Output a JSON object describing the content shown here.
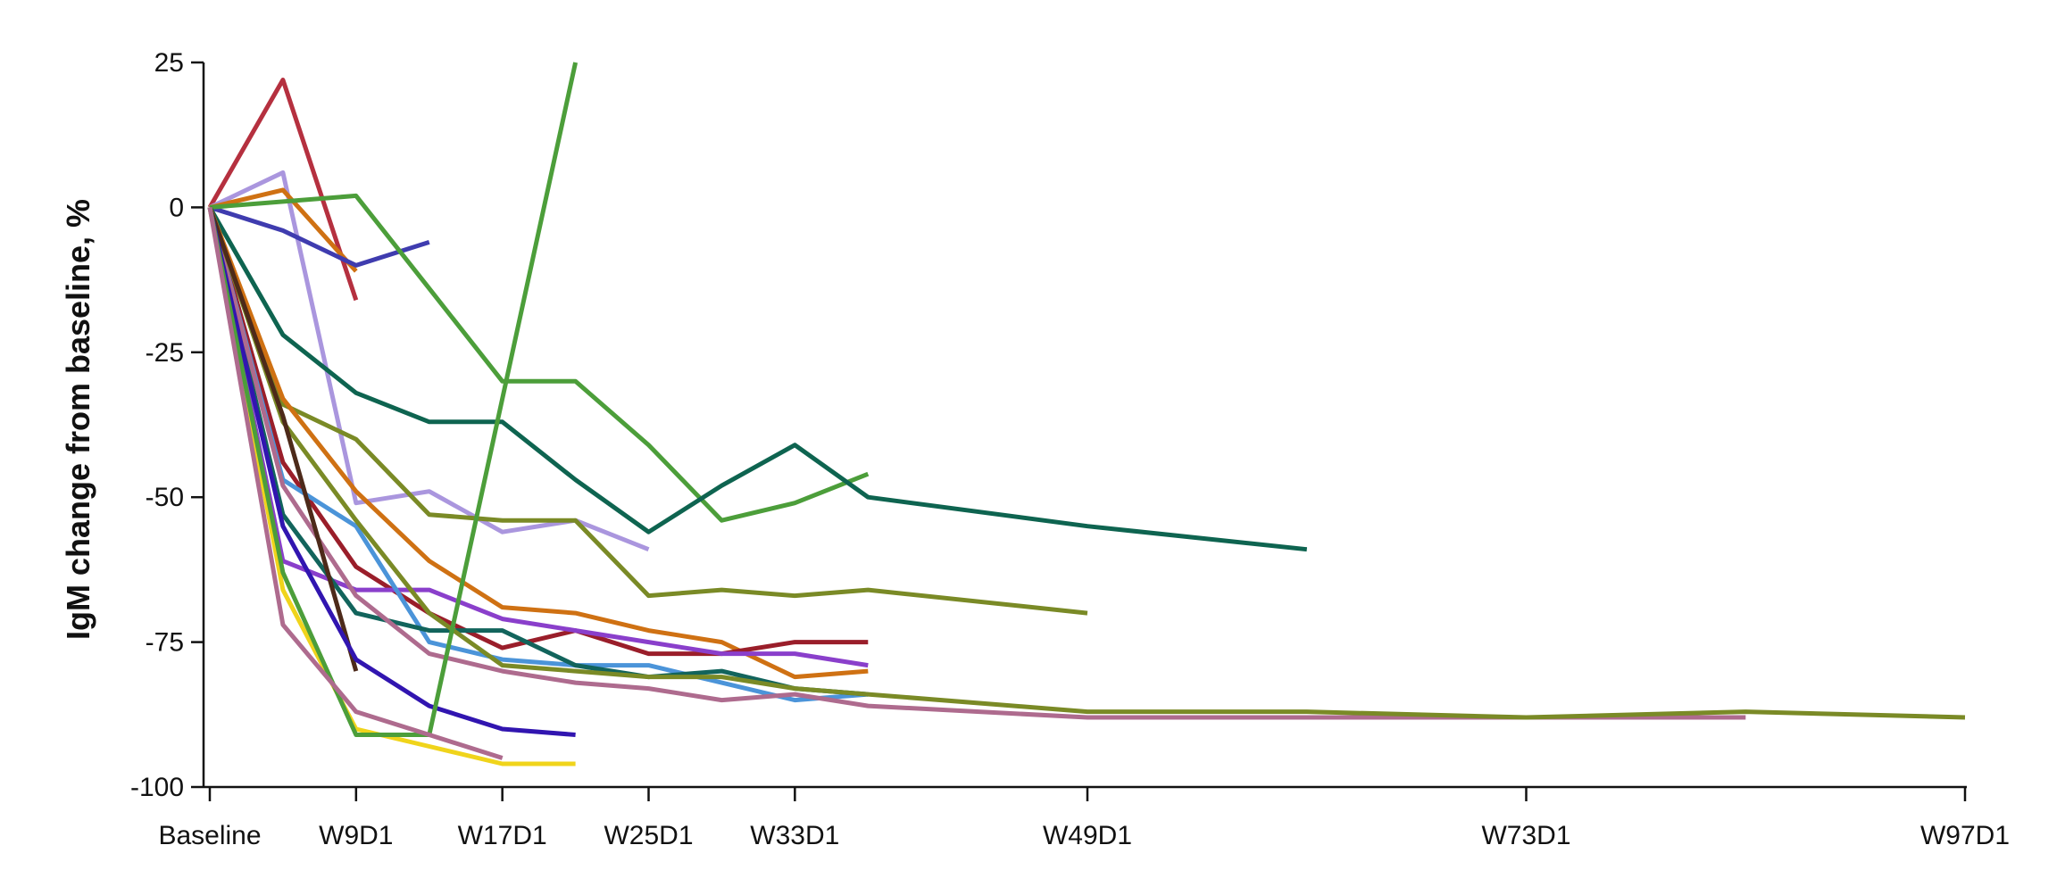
{
  "chart_data": {
    "type": "line",
    "title": "",
    "xlabel": "",
    "ylabel": "IgM change from baseline, %",
    "ylim": [
      -100,
      25
    ],
    "y_ticks": [
      25,
      0,
      -25,
      -50,
      -75,
      -100
    ],
    "x_ticks": [
      {
        "label": "Baseline",
        "week": 1
      },
      {
        "label": "W9D1",
        "week": 9
      },
      {
        "label": "W17D1",
        "week": 17
      },
      {
        "label": "W25D1",
        "week": 25
      },
      {
        "label": "W33D1",
        "week": 33
      },
      {
        "label": "W49D1",
        "week": 49
      },
      {
        "label": "W73D1",
        "week": 73
      },
      {
        "label": "W97D1",
        "week": 97
      }
    ],
    "x_unit": "week",
    "grid": false,
    "legend": "none",
    "series": [
      {
        "color": "#b5303f",
        "points": [
          [
            1,
            0
          ],
          [
            5,
            22
          ],
          [
            9,
            -16
          ]
        ]
      },
      {
        "color": "#aa96de",
        "points": [
          [
            1,
            0
          ],
          [
            5,
            6
          ],
          [
            9,
            -51
          ],
          [
            13,
            -49
          ],
          [
            17,
            -56
          ],
          [
            21,
            -54
          ],
          [
            25,
            -59
          ]
        ]
      },
      {
        "color": "#cf7113",
        "points": [
          [
            1,
            0
          ],
          [
            5,
            3
          ],
          [
            9,
            -11
          ]
        ]
      },
      {
        "color": "#3f3caf",
        "points": [
          [
            1,
            0
          ],
          [
            5,
            -4
          ],
          [
            9,
            -10
          ],
          [
            13,
            -6
          ]
        ]
      },
      {
        "color": "#4c9e3a",
        "points": [
          [
            1,
            0
          ],
          [
            9,
            2
          ],
          [
            13,
            -14
          ],
          [
            17,
            -30
          ],
          [
            21,
            -30
          ],
          [
            25,
            -41
          ],
          [
            29,
            -54
          ],
          [
            33,
            -51
          ],
          [
            37,
            -46
          ]
        ]
      },
      {
        "color": "#0e6450",
        "points": [
          [
            1,
            0
          ],
          [
            5,
            -22
          ],
          [
            9,
            -32
          ],
          [
            13,
            -37
          ],
          [
            17,
            -37
          ],
          [
            21,
            -47
          ],
          [
            25,
            -56
          ],
          [
            29,
            -48
          ],
          [
            33,
            -41
          ],
          [
            37,
            -50
          ],
          [
            49,
            -55
          ],
          [
            61,
            -59
          ]
        ]
      },
      {
        "color": "#7a8a26",
        "points": [
          [
            1,
            0
          ],
          [
            5,
            -34
          ],
          [
            9,
            -40
          ],
          [
            13,
            -53
          ],
          [
            17,
            -54
          ],
          [
            21,
            -54
          ],
          [
            25,
            -67
          ],
          [
            29,
            -66
          ],
          [
            33,
            -67
          ],
          [
            37,
            -66
          ],
          [
            49,
            -70
          ]
        ]
      },
      {
        "color": "#cf7113",
        "points": [
          [
            1,
            0
          ],
          [
            5,
            -33
          ],
          [
            9,
            -49
          ],
          [
            13,
            -61
          ],
          [
            17,
            -69
          ],
          [
            21,
            -70
          ],
          [
            25,
            -73
          ],
          [
            29,
            -75
          ],
          [
            33,
            -81
          ],
          [
            37,
            -80
          ]
        ]
      },
      {
        "color": "#9a1e2a",
        "points": [
          [
            1,
            0
          ],
          [
            5,
            -44
          ],
          [
            9,
            -62
          ],
          [
            13,
            -70
          ],
          [
            17,
            -76
          ],
          [
            21,
            -73
          ],
          [
            25,
            -77
          ],
          [
            29,
            -77
          ],
          [
            33,
            -75
          ],
          [
            37,
            -75
          ]
        ]
      },
      {
        "color": "#8a3fcb",
        "points": [
          [
            1,
            0
          ],
          [
            5,
            -61
          ],
          [
            9,
            -66
          ],
          [
            13,
            -66
          ],
          [
            17,
            -71
          ],
          [
            21,
            -73
          ],
          [
            25,
            -75
          ],
          [
            29,
            -77
          ],
          [
            33,
            -77
          ],
          [
            37,
            -79
          ]
        ]
      },
      {
        "color": "#4b94d9",
        "points": [
          [
            1,
            0
          ],
          [
            5,
            -47
          ],
          [
            9,
            -55
          ],
          [
            13,
            -75
          ],
          [
            17,
            -78
          ],
          [
            21,
            -79
          ],
          [
            25,
            -79
          ],
          [
            29,
            -82
          ],
          [
            33,
            -85
          ],
          [
            37,
            -84
          ]
        ]
      },
      {
        "color": "#12645c",
        "points": [
          [
            1,
            0
          ],
          [
            5,
            -53
          ],
          [
            9,
            -70
          ],
          [
            13,
            -73
          ],
          [
            17,
            -73
          ],
          [
            21,
            -79
          ],
          [
            25,
            -81
          ],
          [
            29,
            -80
          ],
          [
            33,
            -83
          ],
          [
            37,
            -84
          ]
        ]
      },
      {
        "color": "#ae6b8e",
        "points": [
          [
            1,
            0
          ],
          [
            5,
            -48
          ],
          [
            9,
            -67
          ],
          [
            13,
            -77
          ],
          [
            17,
            -80
          ],
          [
            21,
            -82
          ],
          [
            25,
            -83
          ],
          [
            29,
            -85
          ],
          [
            33,
            -84
          ],
          [
            37,
            -86
          ],
          [
            49,
            -88
          ],
          [
            61,
            -88
          ],
          [
            73,
            -88
          ],
          [
            85,
            -88
          ]
        ]
      },
      {
        "color": "#7a8a26",
        "points": [
          [
            1,
            0
          ],
          [
            5,
            -37
          ],
          [
            9,
            -54
          ],
          [
            13,
            -70
          ],
          [
            17,
            -79
          ],
          [
            21,
            -80
          ],
          [
            25,
            -81
          ],
          [
            29,
            -81
          ],
          [
            33,
            -83
          ],
          [
            37,
            -84
          ],
          [
            49,
            -87
          ],
          [
            61,
            -87
          ],
          [
            73,
            -88
          ],
          [
            85,
            -87
          ],
          [
            97,
            -88
          ]
        ]
      },
      {
        "color": "#4d2a1a",
        "points": [
          [
            1,
            0
          ],
          [
            5,
            -36
          ],
          [
            9,
            -80
          ]
        ]
      },
      {
        "color": "#3115b0",
        "points": [
          [
            1,
            0
          ],
          [
            5,
            -55
          ],
          [
            9,
            -78
          ],
          [
            13,
            -86
          ],
          [
            17,
            -90
          ],
          [
            21,
            -91
          ]
        ]
      },
      {
        "color": "#f0d41b",
        "points": [
          [
            1,
            0
          ],
          [
            5,
            -66
          ],
          [
            9,
            -90
          ],
          [
            13,
            -93
          ],
          [
            17,
            -96
          ],
          [
            21,
            -96
          ]
        ]
      },
      {
        "color": "#4c9e3a",
        "points": [
          [
            1,
            0
          ],
          [
            5,
            -63
          ],
          [
            9,
            -91
          ],
          [
            13,
            -91
          ],
          [
            21,
            25
          ]
        ]
      },
      {
        "color": "#ae6b8e",
        "points": [
          [
            1,
            0
          ],
          [
            5,
            -72
          ],
          [
            9,
            -87
          ],
          [
            13,
            -91
          ],
          [
            17,
            -95
          ]
        ]
      }
    ]
  }
}
